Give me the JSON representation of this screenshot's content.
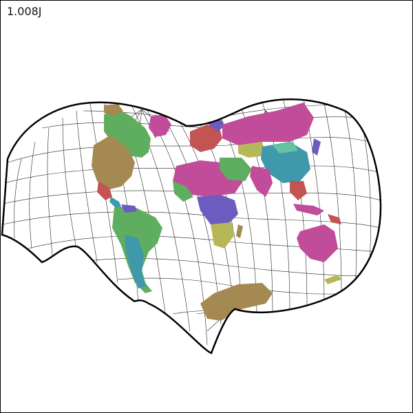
{
  "map": {
    "label": "1.008J",
    "colors": {
      "outline": "#000000",
      "graticule": "#222222",
      "land_tan": "#a48a52",
      "land_green": "#5fae5f",
      "land_pink": "#c14c9a",
      "land_teal": "#3f99aa",
      "land_purple": "#6c5cc0",
      "land_olive": "#b6b758",
      "land_red": "#c25454",
      "land_mint": "#65c39f"
    }
  }
}
